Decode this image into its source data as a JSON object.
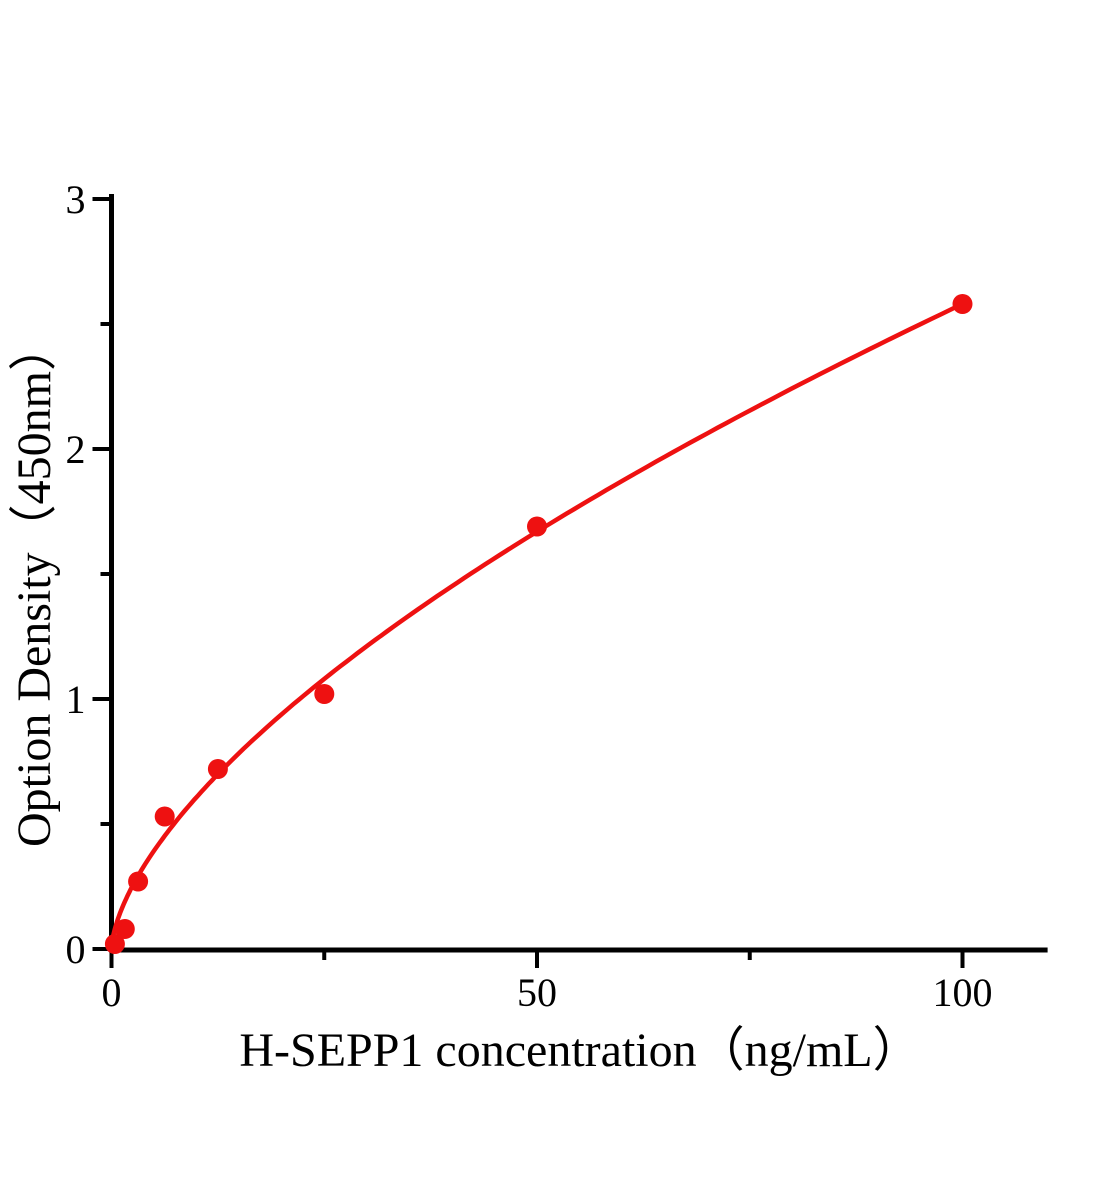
{
  "chart_data": {
    "type": "scatter",
    "title": "",
    "xlabel": "H-SEPP1 concentration（ng/mL）",
    "ylabel": "Option Density（450nm）",
    "x_major_ticks": [
      0,
      50,
      100
    ],
    "x_minor_ticks": [
      25,
      75
    ],
    "y_major_ticks": [
      0,
      1,
      2,
      3
    ],
    "y_minor_ticks": [
      0.5,
      1.5,
      2.5
    ],
    "xlim": [
      0,
      110
    ],
    "ylim": [
      0,
      3.02
    ],
    "grid": "off",
    "legend": "none",
    "points": [
      {
        "x": 0.4,
        "y": 0.02
      },
      {
        "x": 1.56,
        "y": 0.08
      },
      {
        "x": 3.12,
        "y": 0.27
      },
      {
        "x": 6.25,
        "y": 0.53
      },
      {
        "x": 12.5,
        "y": 0.72
      },
      {
        "x": 25,
        "y": 1.02
      },
      {
        "x": 50,
        "y": 1.69
      },
      {
        "x": 100,
        "y": 2.58
      }
    ],
    "fit_curve": {
      "model": "power",
      "a": 0.1431,
      "b": 0.628,
      "x_start": 0,
      "x_end": 100
    },
    "marker_radius": 10,
    "colors": {
      "series": "#ee1111",
      "axis": "#000000",
      "background": "#ffffff"
    }
  }
}
